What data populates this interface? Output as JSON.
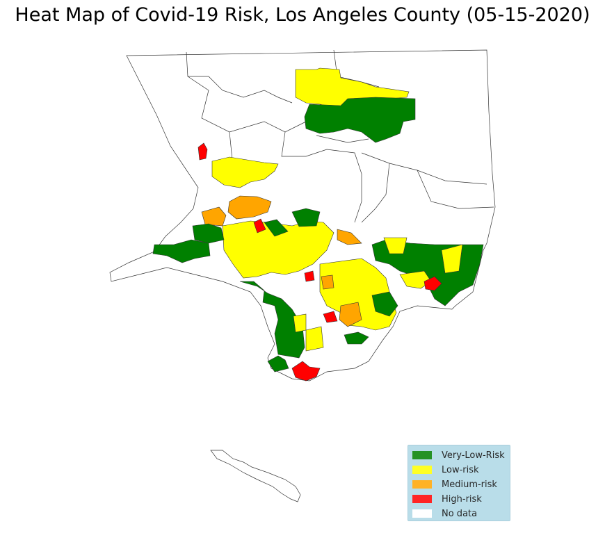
{
  "title": "Heat Map of Covid-19 Risk, Los Angeles County (05-15-2020)",
  "colors": {
    "very_low": "#008000",
    "low": "#ffff00",
    "medium": "#ffa500",
    "high": "#ff0000",
    "no_data": "#ffffff",
    "boundary": "#333333",
    "legend_bg": "#add8e6"
  },
  "legend": {
    "placement": "lower-right",
    "items": [
      {
        "label": "Very-Low-Risk",
        "key": "very_low"
      },
      {
        "label": "Low-risk",
        "key": "low"
      },
      {
        "label": "Medium-risk",
        "key": "medium"
      },
      {
        "label": "High-risk",
        "key": "high"
      },
      {
        "label": "No data",
        "key": "no_data"
      }
    ]
  }
}
